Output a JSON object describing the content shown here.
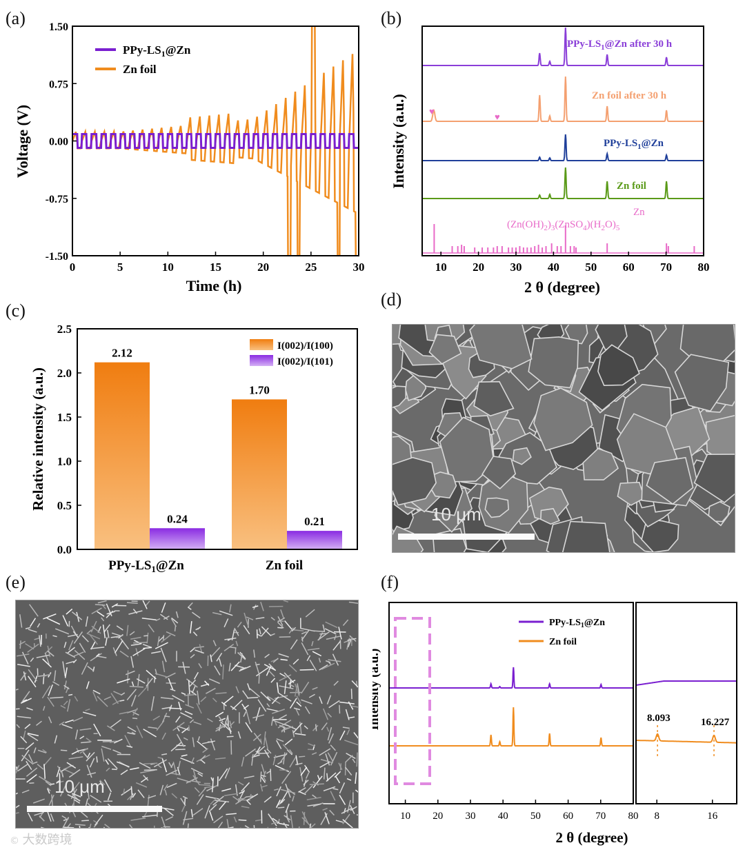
{
  "panels": {
    "a": {
      "letter": "(a)"
    },
    "b": {
      "letter": "(b)"
    },
    "c": {
      "letter": "(c)"
    },
    "d": {
      "letter": "(d)",
      "scale_label": "10 μm"
    },
    "e": {
      "letter": "(e)",
      "scale_label": "10 μm"
    },
    "f": {
      "letter": "(f)"
    }
  },
  "colors": {
    "purple": "#7a1fd0",
    "orange": "#f08c1e",
    "blue": "#1f3f9a",
    "green": "#5a9a18",
    "pink": "#e86ac8",
    "salmon": "#f4a070"
  },
  "watermark": "大数跨境",
  "chart_data": [
    {
      "id": "a",
      "type": "line",
      "title": "",
      "xlabel": "Time (h)",
      "ylabel": "Voltage (V)",
      "xlim": [
        0,
        30
      ],
      "ylim": [
        -1.5,
        1.5
      ],
      "xticks": [
        "0",
        "5",
        "10",
        "15",
        "20",
        "25",
        "30"
      ],
      "yticks": [
        "-1.50",
        "-0.75",
        "0.00",
        "0.75",
        "1.50"
      ],
      "legend": [
        "PPy-LS1@Zn",
        "Zn foil"
      ],
      "series": [
        {
          "name": "PPy-LS1@Zn",
          "description": "stable square-wave cycling",
          "amplitude_v": 0.1
        },
        {
          "name": "Zn foil",
          "description": "growing overpotential, short circuit near 22.5 h",
          "peak_v": 1.5,
          "peak_time_h": 25.3
        }
      ]
    },
    {
      "id": "b",
      "type": "line",
      "xlabel": "2 θ (degree)",
      "ylabel": "Intensity (a.u.)",
      "xlim": [
        5,
        80
      ],
      "xticks": [
        "10",
        "20",
        "30",
        "40",
        "50",
        "60",
        "70",
        "80"
      ],
      "series_labels": [
        "PPy-LS1@Zn after 30 h",
        "Zn foil after 30 h",
        "PPy-LS1@Zn",
        "Zn foil"
      ],
      "reference": {
        "label_top": "Zn",
        "label": "(Zn(OH)2)3(ZnSO4)(H2O)5"
      },
      "markers": "♥",
      "zn_peaks": [
        36.3,
        39.0,
        43.2,
        54.3,
        70.1
      ]
    },
    {
      "id": "c",
      "type": "bar",
      "categories": [
        "PPy-LS1@Zn",
        "Zn foil"
      ],
      "ylabel": "Relative intensity (a.u.)",
      "ylim": [
        0,
        2.5
      ],
      "yticks": [
        "0.0",
        "0.5",
        "1.0",
        "1.5",
        "2.0",
        "2.5"
      ],
      "series": [
        {
          "name": "I(002)/I(100)",
          "values": [
            2.12,
            1.7
          ],
          "labels": [
            "2.12",
            "1.70"
          ]
        },
        {
          "name": "I(002)/I(101)",
          "values": [
            0.24,
            0.21
          ],
          "labels": [
            "0.24",
            "0.21"
          ]
        }
      ]
    },
    {
      "id": "f",
      "type": "line",
      "xlabel": "2 θ (degree)",
      "ylabel": "Intensity (a.u.)",
      "xlim": [
        5,
        80
      ],
      "xticks": [
        "10",
        "20",
        "30",
        "40",
        "50",
        "60",
        "70",
        "80"
      ],
      "inset_xticks": [
        "8",
        "16"
      ],
      "legend": [
        "PPy-LS1@Zn",
        "Zn foil"
      ],
      "inset_labels": [
        "8.093",
        "16.227"
      ],
      "inset_peaks": [
        8.093,
        16.227
      ]
    }
  ]
}
